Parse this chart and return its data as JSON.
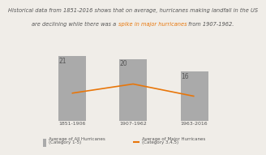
{
  "title_line1": "Historical data from 1851-2016 shows that on average, hurricanes making landfall in the US",
  "title_line2_normal1": "are declining while there was a ",
  "title_line2_highlight": "spike in major hurricanes",
  "title_line2_normal2": " from 1907-1962.",
  "categories": [
    "1851-1906",
    "1907-1962",
    "1963-2016"
  ],
  "bar_values": [
    21,
    20,
    16
  ],
  "bar_color": "#aaaaaa",
  "line_values": [
    9,
    12,
    8
  ],
  "line_color": "#e8760a",
  "bar_width": 0.45,
  "legend_bar_label": "Average of All Hurricanes",
  "legend_bar_sublabel": "(Category 1-5)",
  "legend_line_label": "Average of Major Hurricanes",
  "legend_line_sublabel": "(Category 3,4,5)",
  "title_fontsize": 4.8,
  "highlight_color": "#e8760a",
  "text_color": "#555555",
  "background_color": "#f0ede8"
}
